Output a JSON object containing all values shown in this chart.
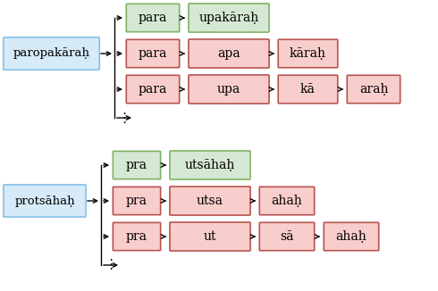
{
  "group1": {
    "input": "paropakāraḥ",
    "rows": [
      {
        "tokens": [
          "para",
          "upakāraḥ"
        ],
        "colors": [
          "green",
          "green"
        ]
      },
      {
        "tokens": [
          "para",
          "apa",
          "kāraḥ"
        ],
        "colors": [
          "pink",
          "pink",
          "pink"
        ]
      },
      {
        "tokens": [
          "para",
          "upa",
          "kā",
          "araḥ"
        ],
        "colors": [
          "pink",
          "pink",
          "pink",
          "pink"
        ]
      }
    ]
  },
  "group2": {
    "input": "protsāhaḥ",
    "rows": [
      {
        "tokens": [
          "pra",
          "utsāhaḥ"
        ],
        "colors": [
          "green",
          "green"
        ]
      },
      {
        "tokens": [
          "pra",
          "utsa",
          "ahaḥ"
        ],
        "colors": [
          "pink",
          "pink",
          "pink"
        ]
      },
      {
        "tokens": [
          "pra",
          "ut",
          "sā",
          "ahaḥ"
        ],
        "colors": [
          "pink",
          "pink",
          "pink",
          "pink"
        ]
      }
    ]
  },
  "blue_fc": "#d6eaf8",
  "blue_ec": "#85c1e9",
  "green_fc": "#d5e8d4",
  "green_ec": "#82b366",
  "pink_fc": "#f8cecc",
  "pink_ec": "#b85450",
  "text_color": "#000000"
}
